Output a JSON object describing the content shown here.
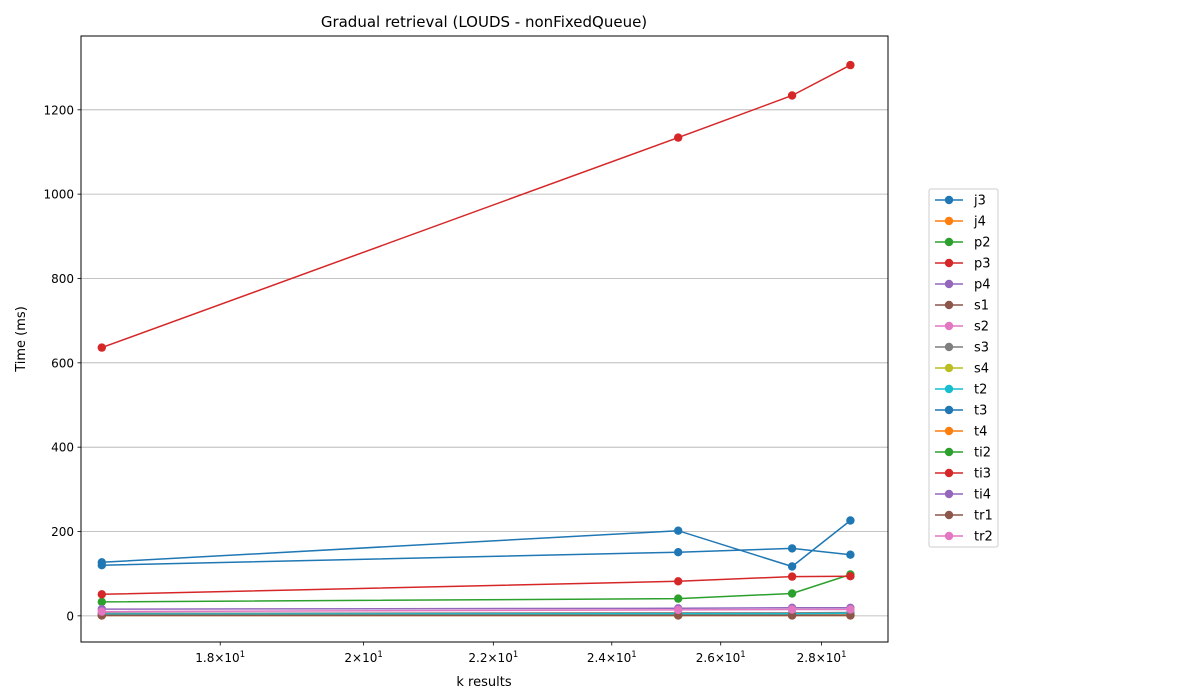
{
  "chart_data": {
    "type": "line",
    "title": "Gradual retrieval (LOUDS - nonFixedQueue)",
    "xlabel": "k results",
    "ylabel": "Time (ms)",
    "xscale": "log",
    "xlim": [
      16.25,
      29.4
    ],
    "ylim": [
      -62,
      1375
    ],
    "x": [
      16.5,
      25.2,
      27.4,
      28.6
    ],
    "grid": "y",
    "legend_position": "outside-right",
    "xticks": [
      {
        "value": 18,
        "base": "1.8",
        "exp": "1"
      },
      {
        "value": 20,
        "base": "2",
        "exp": "1"
      },
      {
        "value": 22,
        "base": "2.2",
        "exp": "1"
      },
      {
        "value": 24,
        "base": "2.4",
        "exp": "1"
      },
      {
        "value": 26,
        "base": "2.6",
        "exp": "1"
      },
      {
        "value": 28,
        "base": "2.8",
        "exp": "1"
      }
    ],
    "yticks": [
      0,
      200,
      400,
      600,
      800,
      1000,
      1200
    ],
    "series": [
      {
        "name": "j3",
        "color": "#1f77b4",
        "values": [
          127,
          202,
          117,
          226
        ]
      },
      {
        "name": "j4",
        "color": "#ff7f0e",
        "values": [
          1,
          1,
          1,
          1
        ]
      },
      {
        "name": "p2",
        "color": "#2ca02c",
        "values": [
          2,
          2,
          2,
          2
        ]
      },
      {
        "name": "p3",
        "color": "#d62728",
        "values": [
          636,
          1134,
          1234,
          1306
        ]
      },
      {
        "name": "p4",
        "color": "#9467bd",
        "values": [
          3,
          3,
          3,
          3
        ]
      },
      {
        "name": "s1",
        "color": "#8c564b",
        "values": [
          1,
          1,
          1,
          1
        ]
      },
      {
        "name": "s2",
        "color": "#e377c2",
        "values": [
          2,
          3,
          3,
          3
        ]
      },
      {
        "name": "s3",
        "color": "#7f7f7f",
        "values": [
          6,
          7,
          7,
          8
        ]
      },
      {
        "name": "s4",
        "color": "#bcbd22",
        "values": [
          2,
          2,
          2,
          2
        ]
      },
      {
        "name": "t2",
        "color": "#17becf",
        "values": [
          4,
          5,
          5,
          6
        ]
      },
      {
        "name": "t3",
        "color": "#1f77b4",
        "values": [
          120,
          151,
          160,
          145
        ]
      },
      {
        "name": "t4",
        "color": "#ff7f0e",
        "values": [
          1,
          1,
          1,
          1
        ]
      },
      {
        "name": "ti2",
        "color": "#2ca02c",
        "values": [
          33,
          41,
          53,
          98
        ]
      },
      {
        "name": "ti3",
        "color": "#d62728",
        "values": [
          51,
          82,
          93,
          94
        ]
      },
      {
        "name": "ti4",
        "color": "#9467bd",
        "values": [
          16,
          18,
          19,
          19
        ]
      },
      {
        "name": "tr1",
        "color": "#8c564b",
        "values": [
          1,
          1,
          1,
          1
        ]
      },
      {
        "name": "tr2",
        "color": "#e377c2",
        "values": [
          10,
          14,
          15,
          15
        ]
      }
    ]
  }
}
